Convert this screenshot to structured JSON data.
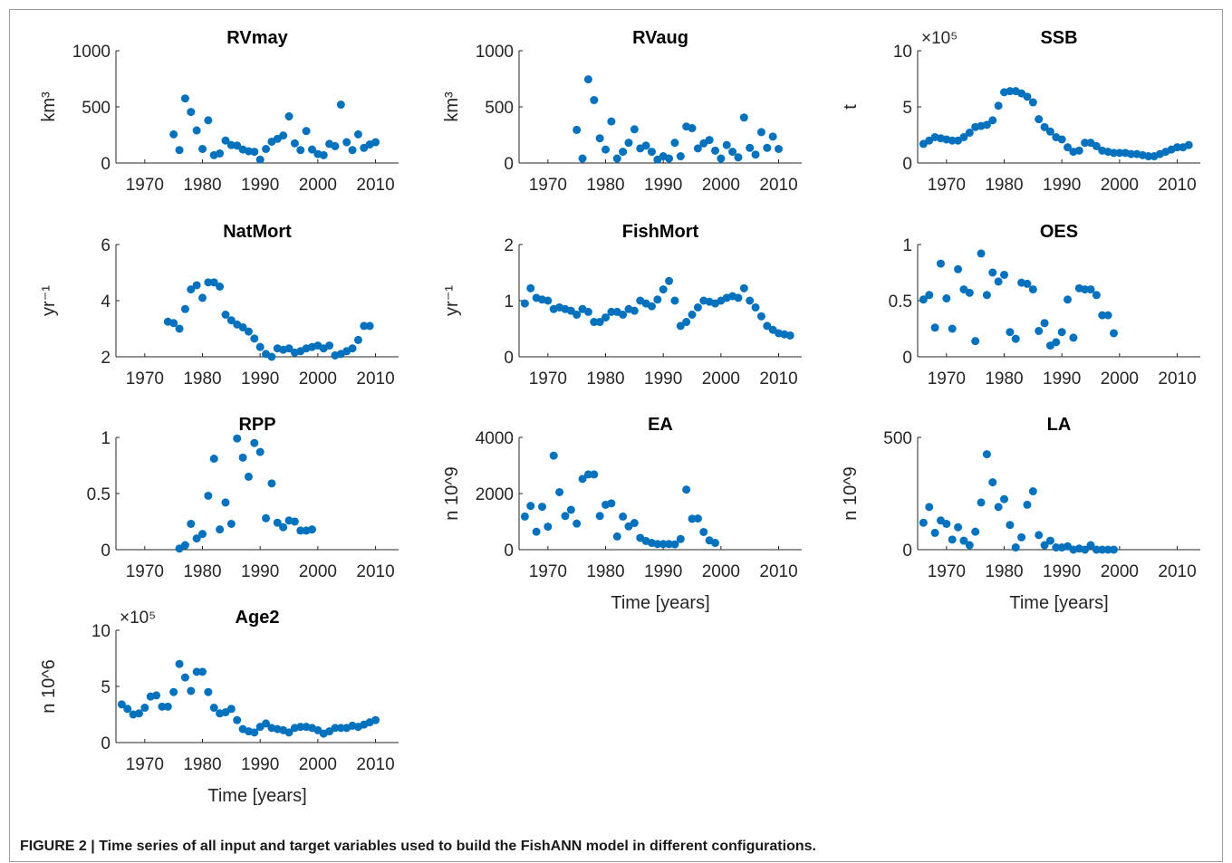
{
  "caption": "FIGURE 2 | Time series of all input and target variables used to build the FishANN model in different configurations.",
  "chart_data": [
    {
      "type": "scatter",
      "title": "RVmay",
      "ylabel": "km³",
      "color": "#0072bd",
      "x": [
        1975,
        1976,
        1977,
        1978,
        1979,
        1980,
        1981,
        1982,
        1983,
        1984,
        1985,
        1986,
        1987,
        1988,
        1989,
        1990,
        1991,
        1992,
        1993,
        1994,
        1995,
        1996,
        1997,
        1998,
        1999,
        2000,
        2001,
        2002,
        2003,
        2004,
        2005,
        2006,
        2007,
        2008,
        2009,
        2010
      ],
      "values": [
        255,
        115,
        575,
        455,
        290,
        125,
        380,
        70,
        85,
        200,
        160,
        155,
        120,
        105,
        100,
        30,
        125,
        190,
        215,
        245,
        415,
        175,
        115,
        285,
        120,
        80,
        70,
        170,
        150,
        520,
        185,
        115,
        255,
        135,
        165,
        185
      ],
      "xlim": [
        1965,
        2014
      ],
      "xticks": [
        1970,
        1980,
        1990,
        2000,
        2010
      ],
      "ylim": [
        0,
        1000
      ],
      "yticks": [
        0,
        500,
        1000
      ]
    },
    {
      "type": "scatter",
      "title": "RVaug",
      "ylabel": "km³",
      "color": "#0072bd",
      "x": [
        1975,
        1976,
        1977,
        1978,
        1979,
        1980,
        1981,
        1982,
        1983,
        1984,
        1985,
        1986,
        1987,
        1988,
        1989,
        1990,
        1991,
        1992,
        1993,
        1994,
        1995,
        1996,
        1997,
        1998,
        1999,
        2000,
        2001,
        2002,
        2003,
        2004,
        2005,
        2006,
        2007,
        2008,
        2009,
        2010
      ],
      "values": [
        295,
        40,
        745,
        560,
        220,
        120,
        370,
        40,
        100,
        180,
        300,
        130,
        155,
        100,
        30,
        60,
        40,
        180,
        60,
        325,
        310,
        130,
        175,
        205,
        110,
        40,
        160,
        100,
        50,
        405,
        135,
        75,
        275,
        135,
        235,
        125
      ],
      "xlim": [
        1965,
        2014
      ],
      "xticks": [
        1970,
        1980,
        1990,
        2000,
        2010
      ],
      "ylim": [
        0,
        1000
      ],
      "yticks": [
        0,
        500,
        1000
      ]
    },
    {
      "type": "scatter",
      "title": "SSB",
      "ylabel": "t",
      "multiplier": "×10⁵",
      "color": "#0072bd",
      "x": [
        1966,
        1967,
        1968,
        1969,
        1970,
        1971,
        1972,
        1973,
        1974,
        1975,
        1976,
        1977,
        1978,
        1979,
        1980,
        1981,
        1982,
        1983,
        1984,
        1985,
        1986,
        1987,
        1988,
        1989,
        1990,
        1991,
        1992,
        1993,
        1994,
        1995,
        1996,
        1997,
        1998,
        1999,
        2000,
        2001,
        2002,
        2003,
        2004,
        2005,
        2006,
        2007,
        2008,
        2009,
        2010,
        2011,
        2012
      ],
      "values": [
        1.7,
        2.0,
        2.3,
        2.2,
        2.1,
        2.0,
        2.0,
        2.3,
        2.7,
        3.2,
        3.3,
        3.4,
        3.8,
        5.1,
        6.3,
        6.4,
        6.4,
        6.2,
        5.9,
        5.4,
        3.9,
        3.2,
        2.8,
        2.3,
        2.1,
        1.4,
        1.0,
        1.1,
        1.8,
        1.8,
        1.5,
        1.1,
        1.0,
        0.9,
        0.9,
        0.9,
        0.8,
        0.8,
        0.7,
        0.6,
        0.6,
        0.8,
        1.0,
        1.2,
        1.4,
        1.4,
        1.6
      ],
      "xlim": [
        1965,
        2014
      ],
      "xticks": [
        1970,
        1980,
        1990,
        2000,
        2010
      ],
      "ylim": [
        0,
        10
      ],
      "yticks": [
        0,
        5,
        10
      ]
    },
    {
      "type": "scatter",
      "title": "NatMort",
      "ylabel": "yr⁻¹",
      "color": "#0072bd",
      "x": [
        1974,
        1975,
        1976,
        1977,
        1978,
        1979,
        1980,
        1981,
        1982,
        1983,
        1984,
        1985,
        1986,
        1987,
        1988,
        1989,
        1990,
        1991,
        1992,
        1993,
        1994,
        1995,
        1996,
        1997,
        1998,
        1999,
        2000,
        2001,
        2002,
        2003,
        2004,
        2005,
        2006,
        2007,
        2008,
        2009
      ],
      "values": [
        3.25,
        3.2,
        3.0,
        3.7,
        4.4,
        4.55,
        4.1,
        4.65,
        4.65,
        4.5,
        3.5,
        3.3,
        3.15,
        3.05,
        2.9,
        2.65,
        2.35,
        2.1,
        2.0,
        2.3,
        2.25,
        2.3,
        2.15,
        2.2,
        2.3,
        2.35,
        2.4,
        2.3,
        2.4,
        2.05,
        2.1,
        2.2,
        2.3,
        2.6,
        3.1,
        3.1
      ],
      "xlim": [
        1965,
        2014
      ],
      "xticks": [
        1970,
        1980,
        1990,
        2000,
        2010
      ],
      "ylim": [
        2,
        6
      ],
      "yticks": [
        2,
        4,
        6
      ]
    },
    {
      "type": "scatter",
      "title": "FishMort",
      "ylabel": "yr⁻¹",
      "color": "#0072bd",
      "x": [
        1966,
        1967,
        1968,
        1969,
        1970,
        1971,
        1972,
        1973,
        1974,
        1975,
        1976,
        1977,
        1978,
        1979,
        1980,
        1981,
        1982,
        1983,
        1984,
        1985,
        1986,
        1987,
        1988,
        1989,
        1990,
        1991,
        1992,
        1993,
        1994,
        1995,
        1996,
        1997,
        1998,
        1999,
        2000,
        2001,
        2002,
        2003,
        2004,
        2005,
        2006,
        2007,
        2008,
        2009,
        2010,
        2011,
        2012
      ],
      "values": [
        0.95,
        1.22,
        1.05,
        1.02,
        1.0,
        0.85,
        0.88,
        0.85,
        0.82,
        0.75,
        0.85,
        0.8,
        0.62,
        0.62,
        0.7,
        0.8,
        0.8,
        0.75,
        0.85,
        0.82,
        1.0,
        0.95,
        0.9,
        1.02,
        1.2,
        1.35,
        1.0,
        0.55,
        0.62,
        0.75,
        0.88,
        1.0,
        0.98,
        0.95,
        1.0,
        1.05,
        1.08,
        1.05,
        1.22,
        1.0,
        0.88,
        0.72,
        0.55,
        0.48,
        0.42,
        0.4,
        0.38
      ],
      "xlim": [
        1965,
        2014
      ],
      "xticks": [
        1970,
        1980,
        1990,
        2000,
        2010
      ],
      "ylim": [
        0,
        2
      ],
      "yticks": [
        0,
        1,
        2
      ]
    },
    {
      "type": "scatter",
      "title": "OES",
      "color": "#0072bd",
      "x": [
        1966,
        1967,
        1968,
        1969,
        1970,
        1971,
        1972,
        1973,
        1974,
        1975,
        1976,
        1977,
        1978,
        1979,
        1980,
        1981,
        1982,
        1983,
        1984,
        1985,
        1986,
        1987,
        1988,
        1989,
        1990,
        1991,
        1992,
        1993,
        1994,
        1995,
        1996,
        1997,
        1998,
        1999
      ],
      "values": [
        0.51,
        0.55,
        0.26,
        0.83,
        0.52,
        0.25,
        0.78,
        0.6,
        0.57,
        0.14,
        0.92,
        0.55,
        0.75,
        0.67,
        0.73,
        0.22,
        0.16,
        0.66,
        0.65,
        0.6,
        0.23,
        0.3,
        0.1,
        0.13,
        0.22,
        0.51,
        0.17,
        0.61,
        0.6,
        0.6,
        0.55,
        0.37,
        0.37,
        0.21
      ],
      "xlim": [
        1965,
        2014
      ],
      "xticks": [
        1970,
        1980,
        1990,
        2000,
        2010
      ],
      "ylim": [
        0,
        1
      ],
      "yticks": [
        0,
        0.5,
        1
      ]
    },
    {
      "type": "scatter",
      "title": "RPP",
      "color": "#0072bd",
      "x": [
        1976,
        1977,
        1978,
        1979,
        1980,
        1981,
        1982,
        1983,
        1984,
        1985,
        1986,
        1987,
        1988,
        1989,
        1990,
        1991,
        1992,
        1993,
        1994,
        1995,
        1996,
        1997,
        1998,
        1999
      ],
      "values": [
        0.01,
        0.04,
        0.23,
        0.1,
        0.14,
        0.48,
        0.81,
        0.18,
        0.42,
        0.23,
        0.99,
        0.82,
        0.65,
        0.95,
        0.87,
        0.28,
        0.59,
        0.24,
        0.2,
        0.26,
        0.25,
        0.17,
        0.17,
        0.18
      ],
      "xlim": [
        1965,
        2014
      ],
      "xticks": [
        1970,
        1980,
        1990,
        2000,
        2010
      ],
      "ylim": [
        0,
        1
      ],
      "yticks": [
        0,
        0.5,
        1
      ]
    },
    {
      "type": "scatter",
      "title": "EA",
      "ylabel": "n 10^9",
      "xlabel": "Time [years]",
      "color": "#0072bd",
      "x": [
        1966,
        1967,
        1968,
        1969,
        1970,
        1971,
        1972,
        1973,
        1974,
        1975,
        1976,
        1977,
        1978,
        1979,
        1980,
        1981,
        1982,
        1983,
        1984,
        1985,
        1986,
        1987,
        1988,
        1989,
        1990,
        1991,
        1992,
        1993,
        1994,
        1995,
        1996,
        1997,
        1998,
        1999
      ],
      "values": [
        1180,
        1560,
        640,
        1530,
        820,
        3350,
        2050,
        1200,
        1420,
        930,
        2520,
        2680,
        2680,
        1200,
        1600,
        1650,
        470,
        1180,
        830,
        950,
        420,
        310,
        240,
        200,
        200,
        200,
        190,
        380,
        2140,
        1100,
        1110,
        630,
        330,
        240
      ],
      "xlim": [
        1965,
        2014
      ],
      "xticks": [
        1970,
        1980,
        1990,
        2000,
        2010
      ],
      "ylim": [
        0,
        4000
      ],
      "yticks": [
        0,
        2000,
        4000
      ]
    },
    {
      "type": "scatter",
      "title": "LA",
      "ylabel": "n 10^9",
      "xlabel": "Time [years]",
      "color": "#0072bd",
      "x": [
        1966,
        1967,
        1968,
        1969,
        1970,
        1971,
        1972,
        1973,
        1974,
        1975,
        1976,
        1977,
        1978,
        1979,
        1980,
        1981,
        1982,
        1983,
        1984,
        1985,
        1986,
        1987,
        1988,
        1989,
        1990,
        1991,
        1992,
        1993,
        1994,
        1995,
        1996,
        1997,
        1998,
        1999
      ],
      "values": [
        120,
        190,
        75,
        130,
        115,
        45,
        100,
        40,
        20,
        80,
        210,
        425,
        300,
        190,
        225,
        110,
        10,
        55,
        200,
        260,
        65,
        20,
        40,
        10,
        10,
        15,
        0,
        5,
        0,
        20,
        0,
        0,
        0,
        0
      ],
      "xlim": [
        1965,
        2014
      ],
      "xticks": [
        1970,
        1980,
        1990,
        2000,
        2010
      ],
      "ylim": [
        0,
        500
      ],
      "yticks": [
        0,
        500
      ]
    },
    {
      "type": "scatter",
      "title": "Age2",
      "ylabel": "n 10^6",
      "multiplier": "×10⁵",
      "xlabel": "Time [years]",
      "color": "#0072bd",
      "x": [
        1966,
        1967,
        1968,
        1969,
        1970,
        1971,
        1972,
        1973,
        1974,
        1975,
        1976,
        1977,
        1978,
        1979,
        1980,
        1981,
        1982,
        1983,
        1984,
        1985,
        1986,
        1987,
        1988,
        1989,
        1990,
        1991,
        1992,
        1993,
        1994,
        1995,
        1996,
        1997,
        1998,
        1999,
        2000,
        2001,
        2002,
        2003,
        2004,
        2005,
        2006,
        2007,
        2008,
        2009,
        2010
      ],
      "values": [
        3.4,
        3.0,
        2.5,
        2.6,
        3.1,
        4.1,
        4.2,
        3.2,
        3.2,
        4.5,
        7.0,
        5.8,
        4.6,
        6.3,
        6.3,
        4.5,
        3.1,
        2.6,
        2.7,
        3.0,
        2.0,
        1.2,
        1.0,
        0.9,
        1.4,
        1.7,
        1.3,
        1.2,
        1.1,
        0.9,
        1.3,
        1.4,
        1.4,
        1.3,
        1.1,
        0.8,
        1.0,
        1.3,
        1.3,
        1.3,
        1.5,
        1.4,
        1.6,
        1.8,
        2.0
      ],
      "xlim": [
        1965,
        2014
      ],
      "xticks": [
        1970,
        1980,
        1990,
        2000,
        2010
      ],
      "ylim": [
        0,
        10
      ],
      "yticks": [
        0,
        5,
        10
      ]
    }
  ]
}
